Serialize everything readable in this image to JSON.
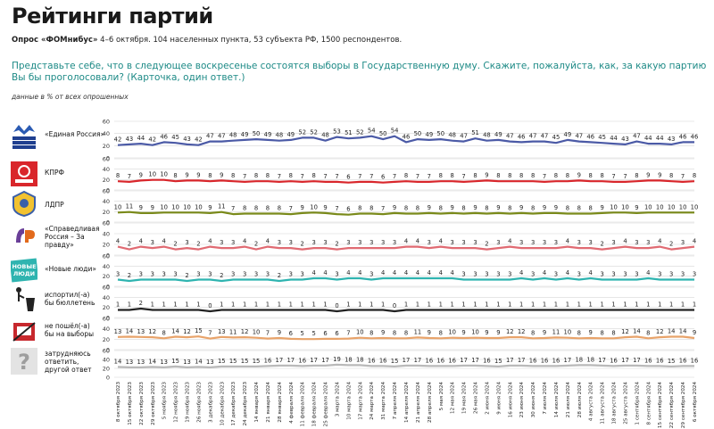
{
  "title": "Рейтинги партий",
  "subtitle_bold": "Опрос «ФОМнибус»",
  "subtitle_rest": " 4–6 октября. 104 населенных пункта, 53 субъекта РФ, 1500 респондентов.",
  "question": "Представьте себе, что в следующее воскресенье состоятся выборы в Государственную думу. Скажите, пожалуйста, как, за какую партию Вы бы проголосовали? (Карточка, один ответ.)",
  "note": "данные в % от всех опрошенных",
  "chart_data": {
    "type": "line",
    "x": [
      "8 октября 2023",
      "15 октября 2023",
      "22 октября 2023",
      "29 октября 2023",
      "5 ноября 2023",
      "12 ноября 2023",
      "19 ноября 2023",
      "26 ноября 2023",
      "3 декабря 2023",
      "10 декабря 2023",
      "17 декабря 2023",
      "24 декабря 2023",
      "14 января 2024",
      "21 января 2024",
      "28 января 2024",
      "4 февраля 2024",
      "11 февраля 2024",
      "18 февраля 2024",
      "25 февраля 2024",
      "3 марта 2024",
      "10 марта 2024",
      "17 марта 2024",
      "24 марта 2024",
      "31 марта 2024",
      "7 апреля 2024",
      "14 апреля 2024",
      "21 апреля 2024",
      "28 апреля 2024",
      "5 мая 2024",
      "12 мая 2024",
      "19 мая 2024",
      "26 мая 2024",
      "2 июня 2024",
      "9 июня 2024",
      "16 июня 2024",
      "23 июня 2024",
      "30 июня 2024",
      "7 июля 2024",
      "14 июля 2024",
      "21 июля 2024",
      "28 июля 2024",
      "4 августа 2024",
      "11 августа 2024",
      "18 августа 2024",
      "25 августа 2024",
      "1 сентября 2024",
      "8 сентября 2024",
      "15 сентября 2024",
      "22 сентября 2024",
      "29 сентября 2024",
      "6 октября 2024"
    ],
    "ylim": [
      0,
      60
    ],
    "yticks": [
      0,
      20,
      40,
      60
    ],
    "series": [
      {
        "name": "«Единая Россия»",
        "color": "#4b5aa6",
        "icon": "united-russia-logo-icon",
        "values": [
          42,
          43,
          44,
          42,
          46,
          45,
          43,
          42,
          47,
          47,
          48,
          49,
          50,
          49,
          48,
          49,
          52,
          52,
          48,
          53,
          51,
          52,
          54,
          50,
          54,
          46,
          50,
          49,
          50,
          48,
          47,
          51,
          48,
          49,
          47,
          46,
          47,
          47,
          45,
          49,
          47,
          46,
          45,
          44,
          43,
          47,
          44,
          44,
          43,
          46,
          46
        ]
      },
      {
        "name": "КПРФ",
        "color": "#d9262b",
        "icon": "kprf-logo-icon",
        "values": [
          8,
          7,
          9,
          10,
          10,
          8,
          9,
          9,
          8,
          9,
          8,
          7,
          8,
          8,
          7,
          8,
          7,
          8,
          7,
          7,
          6,
          7,
          7,
          6,
          7,
          8,
          7,
          7,
          8,
          8,
          7,
          8,
          9,
          8,
          8,
          8,
          8,
          7,
          8,
          8,
          9,
          8,
          8,
          7,
          7,
          8,
          9,
          9,
          8,
          7,
          8
        ]
      },
      {
        "name": "ЛДПР",
        "color": "#7a8a1a",
        "icon": "ldpr-logo-icon",
        "values": [
          10,
          11,
          9,
          9,
          10,
          10,
          10,
          10,
          9,
          11,
          7,
          8,
          8,
          8,
          8,
          7,
          9,
          10,
          9,
          7,
          6,
          8,
          8,
          7,
          9,
          8,
          8,
          9,
          8,
          9,
          8,
          9,
          8,
          9,
          8,
          9,
          8,
          9,
          9,
          8,
          8,
          8,
          9,
          10,
          10,
          9,
          10,
          10,
          10,
          10,
          10
        ]
      },
      {
        "name": "«Справедливая Россия – За правду»",
        "color": "#e06a72",
        "icon": "sr-logo-icon",
        "values": [
          4,
          2,
          4,
          3,
          4,
          2,
          3,
          2,
          4,
          3,
          3,
          4,
          2,
          4,
          3,
          3,
          2,
          3,
          3,
          2,
          3,
          3,
          3,
          3,
          3,
          4,
          4,
          3,
          4,
          3,
          3,
          3,
          2,
          3,
          4,
          3,
          3,
          3,
          3,
          4,
          3,
          3,
          2,
          3,
          4,
          3,
          3,
          4,
          2,
          3,
          4
        ]
      },
      {
        "name": "«Новые люди»",
        "color": "#2fb4b0",
        "icon": "new-people-logo-icon",
        "values": [
          3,
          2,
          3,
          3,
          3,
          3,
          2,
          3,
          3,
          2,
          3,
          3,
          3,
          3,
          2,
          3,
          3,
          4,
          4,
          3,
          4,
          4,
          3,
          4,
          4,
          4,
          4,
          4,
          4,
          4,
          3,
          3,
          3,
          3,
          3,
          4,
          3,
          4,
          3,
          4,
          3,
          4,
          3,
          3,
          3,
          3,
          4,
          3,
          3,
          3,
          3
        ]
      },
      {
        "name": "испортил(-а) бы бюллетень",
        "color": "#222222",
        "icon": "trash-bin-icon",
        "values": [
          1,
          1,
          2,
          1,
          1,
          1,
          1,
          1,
          0,
          1,
          1,
          1,
          1,
          1,
          1,
          1,
          1,
          1,
          1,
          0,
          1,
          1,
          1,
          1,
          0,
          1,
          1,
          1,
          1,
          1,
          1,
          1,
          1,
          1,
          1,
          1,
          1,
          1,
          1,
          1,
          1,
          1,
          1,
          1,
          1,
          1,
          1,
          1,
          1,
          1,
          1
        ]
      },
      {
        "name": "не пошёл(-а) бы на выборы",
        "color": "#e8a36a",
        "icon": "no-voting-icon",
        "values": [
          13,
          14,
          13,
          12,
          8,
          14,
          12,
          15,
          7,
          13,
          11,
          12,
          10,
          7,
          9,
          6,
          5,
          5,
          6,
          6,
          7,
          10,
          8,
          9,
          8,
          8,
          11,
          9,
          8,
          10,
          9,
          10,
          9,
          9,
          12,
          12,
          8,
          9,
          11,
          10,
          8,
          9,
          8,
          8,
          12,
          14,
          8,
          12,
          14,
          14,
          9
        ]
      },
      {
        "name": "затрудняюсь ответить, другой ответ",
        "color": "#b9b9b9",
        "icon": "question-mark-icon",
        "values": [
          14,
          13,
          13,
          14,
          13,
          15,
          13,
          14,
          13,
          15,
          15,
          15,
          15,
          16,
          17,
          17,
          16,
          17,
          17,
          19,
          18,
          18,
          16,
          16,
          15,
          17,
          17,
          16,
          16,
          16,
          17,
          17,
          16,
          15,
          17,
          17,
          16,
          16,
          16,
          17,
          18,
          18,
          17,
          16,
          17,
          17,
          16,
          16,
          15,
          16,
          16
        ]
      }
    ]
  }
}
